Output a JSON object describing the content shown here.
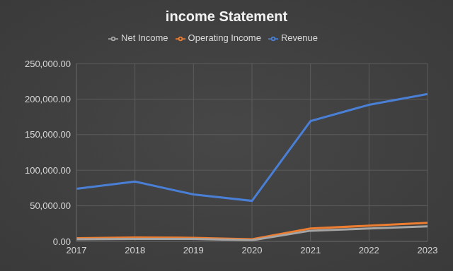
{
  "chart_data": {
    "type": "line",
    "title": "income Statement",
    "categories": [
      "2017",
      "2018",
      "2019",
      "2020",
      "2021",
      "2022",
      "2023"
    ],
    "series": [
      {
        "name": "Revenue",
        "color": "#4a7fd6",
        "values": [
          74000,
          84000,
          66000,
          57000,
          169000,
          192000,
          207000
        ]
      },
      {
        "name": "Operating Income",
        "color": "#ed7d31",
        "values": [
          4500,
          5500,
          5000,
          3000,
          18000,
          22000,
          26000
        ]
      },
      {
        "name": "Net Income",
        "color": "#a5a5a5",
        "values": [
          3000,
          3500,
          3500,
          1500,
          15000,
          18000,
          21000
        ]
      }
    ],
    "ylim": [
      0,
      250000
    ],
    "yticks": [
      {
        "value": 0,
        "label": "0.00"
      },
      {
        "value": 50000,
        "label": "50,000.00"
      },
      {
        "value": 100000,
        "label": "100,000.00"
      },
      {
        "value": 150000,
        "label": "150,000.00"
      },
      {
        "value": 200000,
        "label": "200,000.00"
      },
      {
        "value": 250000,
        "label": "250,000.00"
      }
    ],
    "grid": true,
    "legend": "top"
  }
}
